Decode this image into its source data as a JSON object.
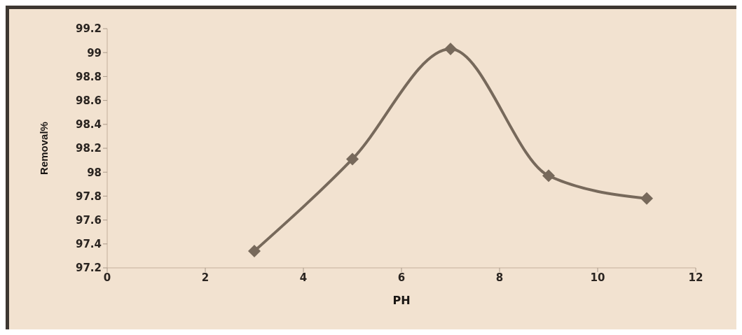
{
  "chart_data": {
    "type": "line",
    "xlabel": "PH",
    "ylabel": "Removal%",
    "x": [
      3,
      5,
      7,
      9,
      11
    ],
    "series": [
      {
        "color": "#77695b",
        "values": [
          97.34,
          98.11,
          99.03,
          97.97,
          97.78
        ]
      }
    ],
    "xlim": [
      0,
      12
    ],
    "xticks": [
      0,
      2,
      4,
      6,
      8,
      10,
      12
    ],
    "ylim": [
      97.2,
      99.2
    ],
    "yticks": [
      97.2,
      97.4,
      97.6,
      97.8,
      98,
      98.2,
      98.4,
      98.6,
      98.8,
      99,
      99.2
    ],
    "marker": "diamond",
    "line_style": "solid",
    "grid": false,
    "legend": false
  }
}
